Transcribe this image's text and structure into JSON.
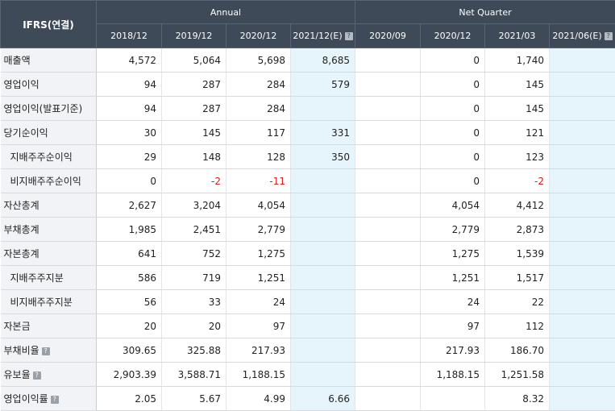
{
  "header": {
    "ifrs_label": "IFRS(연결)",
    "annual_label": "Annual",
    "quarter_label": "Net Quarter",
    "columns": [
      "2018/12",
      "2019/12",
      "2020/12",
      "2021/12(E)",
      "2020/09",
      "2020/12",
      "2021/03",
      "2021/06(E)"
    ]
  },
  "rows": [
    {
      "label": "매출액",
      "sub": false,
      "help": false,
      "values": [
        "4,572",
        "5,064",
        "5,698",
        "8,685",
        "",
        "0",
        "1,740",
        ""
      ]
    },
    {
      "label": "영업이익",
      "sub": false,
      "help": false,
      "values": [
        "94",
        "287",
        "284",
        "579",
        "",
        "0",
        "145",
        ""
      ]
    },
    {
      "label": "영업이익(발표기준)",
      "sub": false,
      "help": false,
      "values": [
        "94",
        "287",
        "284",
        "",
        "",
        "0",
        "145",
        ""
      ]
    },
    {
      "label": "당기순이익",
      "sub": false,
      "help": false,
      "values": [
        "30",
        "145",
        "117",
        "331",
        "",
        "0",
        "121",
        ""
      ]
    },
    {
      "label": "지배주주순이익",
      "sub": true,
      "help": false,
      "values": [
        "29",
        "148",
        "128",
        "350",
        "",
        "0",
        "123",
        ""
      ]
    },
    {
      "label": "비지배주주순이익",
      "sub": true,
      "help": false,
      "values": [
        "0",
        "-2",
        "-11",
        "",
        "",
        "0",
        "-2",
        ""
      ]
    },
    {
      "label": "자산총계",
      "sub": false,
      "help": false,
      "values": [
        "2,627",
        "3,204",
        "4,054",
        "",
        "",
        "4,054",
        "4,412",
        ""
      ]
    },
    {
      "label": "부채총계",
      "sub": false,
      "help": false,
      "values": [
        "1,985",
        "2,451",
        "2,779",
        "",
        "",
        "2,779",
        "2,873",
        ""
      ]
    },
    {
      "label": "자본총계",
      "sub": false,
      "help": false,
      "values": [
        "641",
        "752",
        "1,275",
        "",
        "",
        "1,275",
        "1,539",
        ""
      ]
    },
    {
      "label": "지배주주지분",
      "sub": true,
      "help": false,
      "values": [
        "586",
        "719",
        "1,251",
        "",
        "",
        "1,251",
        "1,517",
        ""
      ]
    },
    {
      "label": "비지배주주지분",
      "sub": true,
      "help": false,
      "values": [
        "56",
        "33",
        "24",
        "",
        "",
        "24",
        "22",
        ""
      ]
    },
    {
      "label": "자본금",
      "sub": false,
      "help": false,
      "values": [
        "20",
        "20",
        "97",
        "",
        "",
        "97",
        "112",
        ""
      ]
    },
    {
      "label": "부채비율",
      "sub": false,
      "help": true,
      "values": [
        "309.65",
        "325.88",
        "217.93",
        "",
        "",
        "217.93",
        "186.70",
        ""
      ]
    },
    {
      "label": "유보율",
      "sub": false,
      "help": true,
      "values": [
        "2,903.39",
        "3,588.71",
        "1,188.15",
        "",
        "",
        "1,188.15",
        "1,251.58",
        ""
      ]
    },
    {
      "label": "영업이익률",
      "sub": false,
      "help": true,
      "values": [
        "2.05",
        "5.67",
        "4.99",
        "6.66",
        "",
        "",
        "8.32",
        ""
      ]
    }
  ],
  "icons": {
    "help": "question-mark-icon"
  },
  "colors": {
    "header_bg": "#3f4a59",
    "label_bg": "#f1f3f6",
    "estimate_bg": "#e6f4fb",
    "negative": "#d81b1b"
  }
}
